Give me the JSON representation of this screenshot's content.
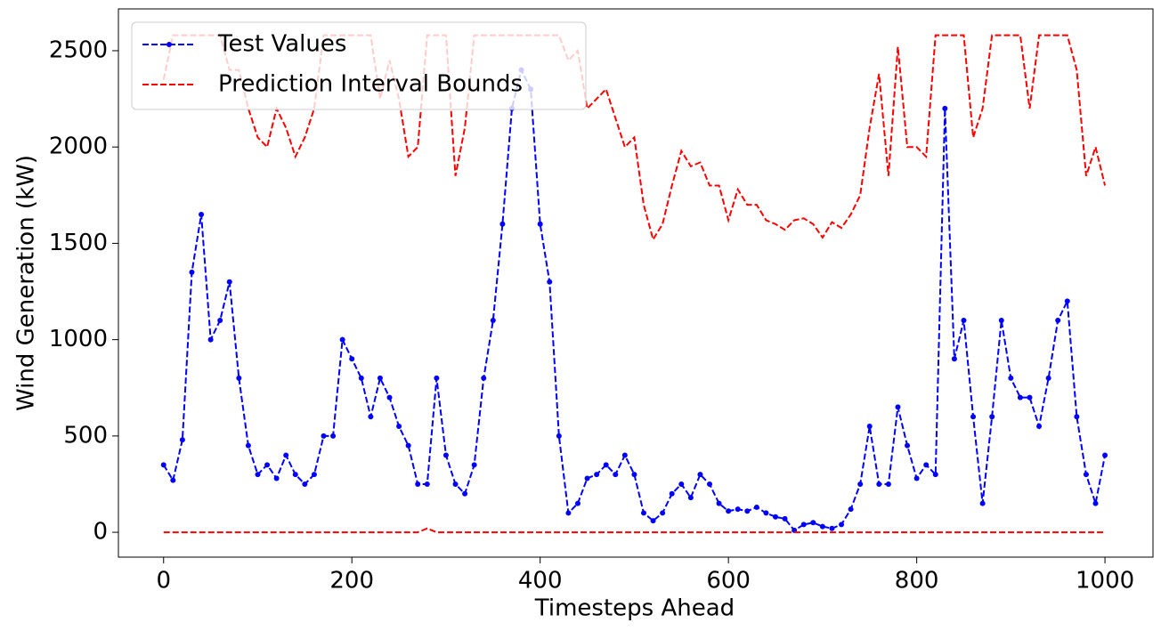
{
  "chart_data": {
    "type": "line",
    "xlabel": "Timesteps Ahead",
    "ylabel": "Wind Generation (kW)",
    "x": [
      0,
      10,
      20,
      30,
      40,
      50,
      60,
      70,
      80,
      90,
      100,
      110,
      120,
      130,
      140,
      150,
      160,
      170,
      180,
      190,
      200,
      210,
      220,
      230,
      240,
      250,
      260,
      270,
      280,
      290,
      300,
      310,
      320,
      330,
      340,
      350,
      360,
      370,
      380,
      390,
      400,
      410,
      420,
      430,
      440,
      450,
      460,
      470,
      480,
      490,
      500,
      510,
      520,
      530,
      540,
      550,
      560,
      570,
      580,
      590,
      600,
      610,
      620,
      630,
      640,
      650,
      660,
      670,
      680,
      690,
      700,
      710,
      720,
      730,
      740,
      750,
      760,
      770,
      780,
      790,
      800,
      810,
      820,
      830,
      840,
      850,
      860,
      870,
      880,
      890,
      900,
      910,
      920,
      930,
      940,
      950,
      960,
      970,
      980,
      990,
      1000
    ],
    "series": [
      {
        "name": "Test Values",
        "color": "#0000ff",
        "markers": true,
        "values": [
          350,
          270,
          480,
          1350,
          1650,
          1000,
          1100,
          1300,
          800,
          450,
          300,
          350,
          280,
          400,
          300,
          250,
          300,
          500,
          500,
          1000,
          900,
          800,
          600,
          800,
          700,
          550,
          450,
          250,
          250,
          800,
          400,
          250,
          200,
          350,
          800,
          1100,
          1600,
          2200,
          2400,
          2300,
          1600,
          1300,
          500,
          100,
          150,
          280,
          300,
          350,
          300,
          400,
          300,
          100,
          60,
          100,
          200,
          250,
          180,
          300,
          250,
          150,
          110,
          120,
          110,
          130,
          100,
          80,
          70,
          10,
          40,
          50,
          30,
          20,
          40,
          120,
          250,
          550,
          250,
          250,
          650,
          450,
          280,
          350,
          300,
          2200,
          900,
          1100,
          600,
          150,
          600,
          1100,
          800,
          700,
          700,
          550,
          800,
          1100,
          1200,
          600,
          300,
          150,
          400
        ]
      },
      {
        "name": "Prediction Interval Bounds",
        "color": "#ff0000",
        "markers": false,
        "values": [
          2350,
          2580,
          2580,
          2580,
          2580,
          2580,
          2580,
          2400,
          2400,
          2200,
          2050,
          2000,
          2200,
          2100,
          1950,
          2050,
          2200,
          2580,
          2580,
          2580,
          2580,
          2580,
          2580,
          2250,
          2450,
          2250,
          1950,
          2000,
          2580,
          2580,
          2580,
          1850,
          2100,
          2580,
          2580,
          2580,
          2580,
          2580,
          2580,
          2580,
          2580,
          2580,
          2580,
          2450,
          2500,
          2200,
          2250,
          2300,
          2150,
          2000,
          2050,
          1700,
          1520,
          1600,
          1800,
          1980,
          1900,
          1920,
          1800,
          1800,
          1620,
          1780,
          1700,
          1700,
          1620,
          1600,
          1570,
          1620,
          1630,
          1600,
          1530,
          1610,
          1580,
          1650,
          1750,
          2100,
          2380,
          1850,
          2520,
          2000,
          2000,
          1950,
          2580,
          2580,
          2580,
          2580,
          2050,
          2200,
          2580,
          2580,
          2580,
          2580,
          2200,
          2580,
          2580,
          2580,
          2580,
          2400,
          1850,
          2000,
          1800
        ]
      },
      {
        "color": "#ff0000",
        "markers": false,
        "values": [
          0,
          0,
          0,
          0,
          0,
          0,
          0,
          0,
          0,
          0,
          0,
          0,
          0,
          0,
          0,
          0,
          0,
          0,
          0,
          0,
          0,
          0,
          0,
          0,
          0,
          0,
          0,
          0,
          20,
          0,
          0,
          0,
          0,
          0,
          0,
          0,
          0,
          0,
          0,
          0,
          0,
          0,
          0,
          0,
          0,
          0,
          0,
          0,
          0,
          0,
          0,
          0,
          0,
          0,
          0,
          0,
          0,
          0,
          0,
          0,
          0,
          0,
          0,
          0,
          0,
          0,
          0,
          0,
          0,
          0,
          0,
          0,
          0,
          0,
          0,
          0,
          0,
          0,
          0,
          0,
          0,
          0,
          0,
          0,
          0,
          0,
          0,
          0,
          0,
          0,
          0,
          0,
          0,
          0,
          0,
          0,
          0,
          0,
          0,
          0,
          0
        ]
      }
    ],
    "xlim": [
      -48,
      1051
    ],
    "ylim": [
      -129,
      2717
    ],
    "xticks": [
      0,
      200,
      400,
      600,
      800,
      1000
    ],
    "yticks": [
      0,
      500,
      1000,
      1500,
      2000,
      2500
    ],
    "legend": "upper left"
  }
}
